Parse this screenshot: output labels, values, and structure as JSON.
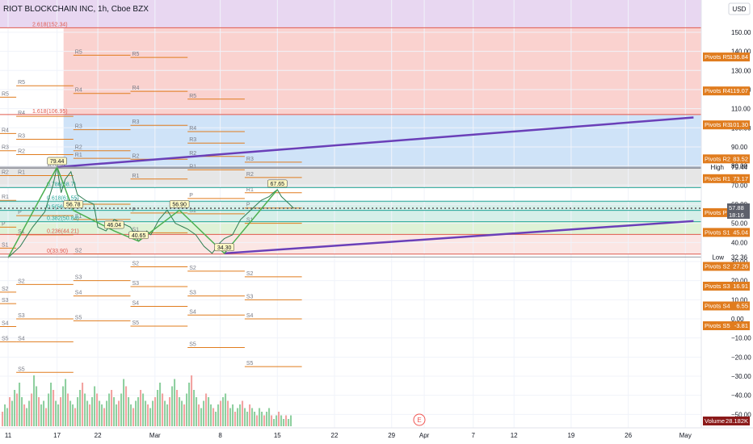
{
  "symbol_title": "RIOT BLOCKCHAIN INC, 1h, Cboe BZX",
  "currency": "USD",
  "colors": {
    "purple_zone": "#e8d7f1",
    "red_zone": "#fad2cf",
    "blue_zone": "#cfe3f8",
    "grey_zone": "#e6e6e6",
    "teal_zone": "#d6efe9",
    "green_zone": "#dff2d6",
    "pivot_orange": "#e07c1e",
    "trend_purple": "#6a3fb8",
    "price_green": "#26a69a",
    "price_red": "#ef5350",
    "zigzag_green": "#4caf50"
  },
  "chart_data": {
    "type": "line",
    "title": "RIOT BLOCKCHAIN INC, 1h, Cboe BZX",
    "y_axis": {
      "range": [
        -60,
        160
      ],
      "ticks": [
        150,
        140,
        130,
        120,
        110,
        100,
        90,
        80,
        70,
        60,
        50,
        40,
        30,
        20,
        10,
        0,
        -10,
        -20,
        -30,
        -40,
        -50
      ],
      "tick_labels": [
        "150.00",
        "140.00",
        "130.00",
        "120.00",
        "110.00",
        "100.00",
        "90.00",
        "80.00",
        "70.00",
        "60.00",
        "50.00",
        "40.00",
        "30.00",
        "20.00",
        "10.00",
        "0.00",
        "−10.00",
        "−20.00",
        "−30.00",
        "−40.00",
        "−50.00"
      ]
    },
    "x_axis": {
      "tick_labels": [
        "11",
        "17",
        "22",
        "Mar",
        "8",
        "15",
        "22",
        "29",
        "Apr",
        "7",
        "12",
        "19",
        "26",
        "May"
      ],
      "tick_days": [
        0,
        6,
        11,
        18,
        26,
        33,
        40,
        47,
        51,
        57,
        62,
        69,
        76,
        83
      ]
    },
    "price_series": {
      "name": "RIOT",
      "x": [
        0,
        1.5,
        3,
        4.5,
        5.5,
        6,
        6.5,
        7,
        7.7,
        8.5,
        9.5,
        10.5,
        11,
        12,
        13,
        14,
        15,
        16,
        17,
        17.5,
        18.5,
        19.5,
        20.5,
        21.5,
        22,
        23,
        24,
        25,
        26,
        26.5,
        27.5,
        28.5,
        29.5,
        30.5,
        31,
        32,
        32.5,
        33,
        33.5,
        34,
        34.5,
        35
      ],
      "y": [
        32,
        38,
        48,
        56,
        70,
        79.44,
        66,
        73,
        77,
        65,
        62,
        60,
        48,
        46.04,
        52,
        50,
        48,
        40.65,
        46,
        44,
        52,
        56.9,
        50,
        48,
        47,
        44,
        38,
        34.3,
        40,
        42,
        44,
        52,
        56,
        60,
        62,
        64,
        66,
        67.65,
        64,
        62,
        60,
        57.88
      ]
    },
    "zigzag": {
      "x": [
        0,
        6,
        8,
        13,
        16,
        21,
        26.5,
        33
      ],
      "y": [
        32,
        79.44,
        56.78,
        46.04,
        40.65,
        56.9,
        34.3,
        67.65
      ]
    },
    "swing_labels": [
      "79.44",
      "56.78",
      "46.04",
      "40.65",
      "56.90",
      "34.30",
      "67.65"
    ],
    "swing_points": [
      [
        6,
        79.44
      ],
      [
        8,
        56.78
      ],
      [
        13,
        46.04
      ],
      [
        16,
        40.65
      ],
      [
        21,
        56.9
      ],
      [
        26.5,
        34.3
      ],
      [
        33,
        67.65
      ]
    ],
    "trendlines": [
      {
        "x": [
          6,
          84
        ],
        "y": [
          79.44,
          105.4
        ]
      },
      {
        "x": [
          26.5,
          84
        ],
        "y": [
          34.3,
          51.2
        ]
      }
    ],
    "fib_levels": [
      {
        "label": "2.618(152.34)",
        "value": 152.34
      },
      {
        "label": "1.618(106.95)",
        "value": 106.95
      },
      {
        "label": "1(78.9)",
        "value": 78.9
      },
      {
        "label": "0.786(68.7)",
        "value": 68.7
      },
      {
        "label": "0.618(61.55)",
        "value": 61.55
      },
      {
        "label": "0.5(56.78)",
        "value": 56.78
      },
      {
        "label": "0.382(50.84)",
        "value": 50.84
      },
      {
        "label": "0.236(44.21)",
        "value": 44.21
      },
      {
        "label": "0(33.90)",
        "value": 33.9
      }
    ],
    "pivot_tags": [
      {
        "label": "Pivots R5",
        "value": 136.84
      },
      {
        "label": "Pivots R4",
        "value": 119.07
      },
      {
        "label": "Pivots R3",
        "value": 101.3
      },
      {
        "label": "Pivots R2",
        "value": 83.52
      },
      {
        "label": "Pivots R1",
        "value": 73.17
      },
      {
        "label": "Pivots P",
        "value": 55.39
      },
      {
        "label": "Pivots S1",
        "value": 45.04
      },
      {
        "label": "Pivots S2",
        "value": 27.26
      },
      {
        "label": "Pivots S3",
        "value": 16.91
      },
      {
        "label": "Pivots S4",
        "value": 6.55
      },
      {
        "label": "Pivots S5",
        "value": -3.81
      }
    ],
    "pivot_blocks": [
      {
        "x": [
          15,
          22
        ],
        "levels": [
          [
            "R5",
            136.84
          ],
          [
            "R4",
            119.07
          ],
          [
            "R3",
            101.3
          ],
          [
            "R2",
            83.52
          ],
          [
            "R1",
            73.17
          ],
          [
            "P",
            55.39
          ],
          [
            "S1",
            45.04
          ],
          [
            "S2",
            27.26
          ],
          [
            "S3",
            16.91
          ],
          [
            "S4",
            6.55
          ],
          [
            "S5",
            -3.81
          ]
        ]
      },
      {
        "x": [
          8,
          15
        ],
        "levels": [
          [
            "R5",
            138
          ],
          [
            "R4",
            118
          ],
          [
            "R3",
            99
          ],
          [
            "R2",
            88
          ],
          [
            "R1",
            84
          ],
          [
            "P",
            60
          ],
          [
            "S1",
            52
          ],
          [
            "S2",
            34
          ],
          [
            "S3",
            20
          ],
          [
            "S4",
            12
          ],
          [
            "S5",
            -1
          ]
        ]
      },
      {
        "x": [
          1,
          8
        ],
        "levels": [
          [
            "R5",
            122
          ],
          [
            "R4",
            106
          ],
          [
            "R3",
            94
          ],
          [
            "R2",
            86
          ],
          [
            "R1",
            75
          ],
          [
            "P",
            54
          ],
          [
            "S1",
            44
          ],
          [
            "S2",
            18
          ],
          [
            "S3",
            0
          ],
          [
            "S4",
            -12
          ],
          [
            "S5",
            -28
          ]
        ]
      },
      {
        "x": [
          22,
          29
        ],
        "levels": [
          [
            "R5",
            115
          ],
          [
            "R4",
            98
          ],
          [
            "R3",
            92
          ],
          [
            "R2",
            85
          ],
          [
            "R1",
            78
          ],
          [
            "P",
            63
          ],
          [
            "S1",
            55
          ],
          [
            "S2",
            25
          ],
          [
            "S3",
            12
          ],
          [
            "S4",
            2
          ],
          [
            "S5",
            -15
          ]
        ]
      },
      {
        "x": [
          29,
          36
        ],
        "levels": [
          [
            "R3",
            82
          ],
          [
            "R2",
            74
          ],
          [
            "R1",
            66
          ],
          [
            "P",
            58
          ],
          [
            "S1",
            50
          ],
          [
            "S2",
            22
          ],
          [
            "S3",
            10
          ],
          [
            "S4",
            0
          ],
          [
            "S5",
            -25
          ]
        ]
      },
      {
        "x": [
          -6,
          1
        ],
        "levels": [
          [
            "R5",
            116
          ],
          [
            "R4",
            97
          ],
          [
            "R3",
            88
          ],
          [
            "R2",
            75
          ],
          [
            "R1",
            62
          ],
          [
            "P",
            48
          ],
          [
            "S1",
            37
          ],
          [
            "S2",
            14
          ],
          [
            "S3",
            8
          ],
          [
            "S4",
            -4
          ],
          [
            "S5",
            -12
          ]
        ]
      }
    ],
    "level_labels": {
      "high": "High",
      "high_value": "79.44",
      "low": "Low",
      "low_value": "32.36",
      "last_price": "57.88",
      "countdown": "18:16",
      "volume_label": "Volume",
      "volume_value": "28.182K"
    },
    "volume": {
      "values": [
        4,
        6,
        5,
        8,
        7,
        10,
        9,
        12,
        8,
        6,
        5,
        7,
        9,
        14,
        11,
        8,
        6,
        7,
        5,
        9,
        12,
        10,
        7,
        6,
        8,
        11,
        13,
        9,
        7,
        6,
        5,
        8,
        10,
        12,
        9,
        7,
        6,
        8,
        11,
        9,
        7,
        6,
        5,
        7,
        9,
        10,
        8,
        6,
        7,
        9,
        13,
        11,
        8,
        6,
        5,
        7,
        8,
        10,
        9,
        7,
        6,
        5,
        7,
        8,
        10,
        12,
        9,
        7,
        6,
        8,
        11,
        13,
        10,
        8,
        7,
        6,
        9,
        12,
        14,
        10,
        8,
        6,
        5,
        7,
        9,
        8,
        6,
        5,
        4,
        6,
        7,
        8,
        9,
        7,
        5,
        6,
        4,
        5,
        6,
        7,
        5,
        4,
        6,
        5,
        4,
        3,
        5,
        4,
        3,
        4,
        5,
        3,
        2,
        3,
        4,
        3,
        2,
        3,
        2,
        3
      ]
    },
    "earnings_marker": "E"
  }
}
